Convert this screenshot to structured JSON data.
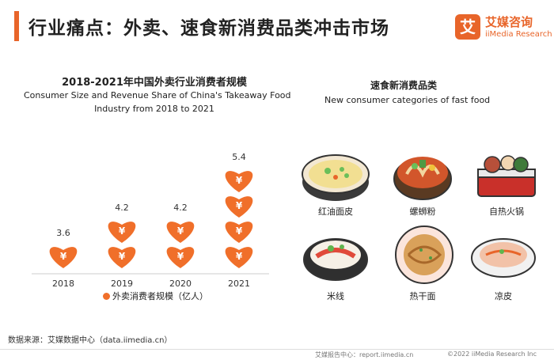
{
  "page": {
    "title": "行业痛点：外卖、速食新消费品类冲击市场"
  },
  "logo": {
    "mark": "艾",
    "name_cn": "艾媒咨询",
    "name_en": "iiMedia Research"
  },
  "chart_data": {
    "type": "bar",
    "title": "2018-2021年中国外卖行业消费者规模",
    "subtitle_line1": "Consumer Size and Revenue Share of China's Takeaway Food",
    "subtitle_line2": "Industry from 2018 to 2021",
    "categories": [
      "2018",
      "2019",
      "2020",
      "2021"
    ],
    "series": [
      {
        "name": "外卖消费者规模（亿人）",
        "values": [
          3.6,
          4.2,
          4.2,
          5.4
        ]
      }
    ],
    "value_labels": [
      "3.6",
      "4.2",
      "4.2",
      "5.4"
    ],
    "icon_counts": [
      1,
      2,
      2,
      4
    ],
    "icon_glyph": "¥",
    "color": "#f06f2a",
    "legend": "bottom"
  },
  "right_panel": {
    "title_cn": "速食新消费品类",
    "title_en": "New consumer categories of fast food",
    "items": [
      {
        "label": "红油面皮",
        "icon": "cold-noodle-bowl-icon"
      },
      {
        "label": "螺蛳粉",
        "icon": "snail-noodle-bowl-icon"
      },
      {
        "label": "自热火锅",
        "icon": "self-heating-hotpot-icon"
      },
      {
        "label": "米线",
        "icon": "rice-noodle-bowl-icon"
      },
      {
        "label": "热干面",
        "icon": "hot-dry-noodle-plate-icon"
      },
      {
        "label": "凉皮",
        "icon": "liangpi-plate-icon"
      }
    ]
  },
  "footer": {
    "source": "数据来源：艾媒数据中心（data.iimedia.cn）",
    "report": "艾媒报告中心：report.iimedia.cn",
    "copyright": "©2022  iiMedia Research  Inc"
  }
}
